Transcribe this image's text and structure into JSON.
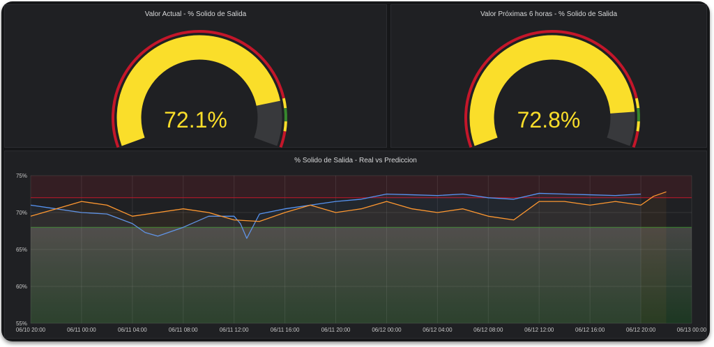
{
  "gauges": [
    {
      "title": "Valor Actual - % Solido de Salida",
      "value": 72.1,
      "display": "72.1%",
      "min": 55,
      "max": 75,
      "thresholds": [
        {
          "from": 55,
          "to": 72,
          "color": "#c4162a"
        },
        {
          "from": 72,
          "to": 72.6,
          "color": "#fade2a"
        },
        {
          "from": 72.6,
          "to": 73.4,
          "color": "#37872d"
        },
        {
          "from": 73.4,
          "to": 74,
          "color": "#fade2a"
        },
        {
          "from": 74,
          "to": 75,
          "color": "#c4162a"
        }
      ]
    },
    {
      "title": "Valor Próximas 6 horas - % Solido de Salida",
      "value": 72.8,
      "display": "72.8%",
      "min": 55,
      "max": 75,
      "thresholds": [
        {
          "from": 55,
          "to": 72,
          "color": "#c4162a"
        },
        {
          "from": 72,
          "to": 72.6,
          "color": "#fade2a"
        },
        {
          "from": 72.6,
          "to": 73.4,
          "color": "#37872d"
        },
        {
          "from": 73.4,
          "to": 74,
          "color": "#fade2a"
        },
        {
          "from": 74,
          "to": 75,
          "color": "#c4162a"
        }
      ]
    }
  ],
  "chart_data": {
    "type": "line",
    "title": "% Solido de Salida - Real vs Prediccion",
    "x_start": "06/10 20:00",
    "x_end": "06/13 00:00",
    "x_tick_labels": [
      "06/10 20:00",
      "06/11 00:00",
      "06/11 04:00",
      "06/11 08:00",
      "06/11 12:00",
      "06/11 16:00",
      "06/11 20:00",
      "06/12 00:00",
      "06/12 04:00",
      "06/12 08:00",
      "06/12 12:00",
      "06/12 16:00",
      "06/12 20:00",
      "06/13 00:00"
    ],
    "y_tick_labels": [
      "55%",
      "60%",
      "65%",
      "70%",
      "75%"
    ],
    "ylim": [
      55,
      75
    ],
    "upper_threshold": 72,
    "lower_threshold": 68,
    "grid": true,
    "series": [
      {
        "color": "#5794f2",
        "x": [
          "06/10 20:00",
          "06/10 22:00",
          "06/11 00:00",
          "06/11 02:00",
          "06/11 04:00",
          "06/11 05:00",
          "06/11 06:00",
          "06/11 08:00",
          "06/11 10:00",
          "06/11 12:00",
          "06/11 12:30",
          "06/11 13:00",
          "06/11 14:00",
          "06/11 16:00",
          "06/11 18:00",
          "06/11 20:00",
          "06/11 22:00",
          "06/12 00:00",
          "06/12 02:00",
          "06/12 04:00",
          "06/12 06:00",
          "06/12 08:00",
          "06/12 10:00",
          "06/12 12:00",
          "06/12 14:00",
          "06/12 16:00",
          "06/12 18:00",
          "06/12 20:00"
        ],
        "y": [
          71.0,
          70.5,
          70.0,
          69.8,
          68.5,
          67.3,
          66.8,
          68.0,
          69.5,
          69.5,
          68.5,
          66.5,
          69.8,
          70.5,
          71.0,
          71.5,
          71.8,
          72.5,
          72.4,
          72.3,
          72.5,
          72.0,
          71.8,
          72.6,
          72.5,
          72.4,
          72.3,
          72.5
        ]
      },
      {
        "color": "#ff9830",
        "x": [
          "06/10 20:00",
          "06/10 22:00",
          "06/11 00:00",
          "06/11 02:00",
          "06/11 04:00",
          "06/11 06:00",
          "06/11 08:00",
          "06/11 10:00",
          "06/11 12:00",
          "06/11 14:00",
          "06/11 16:00",
          "06/11 18:00",
          "06/11 20:00",
          "06/11 22:00",
          "06/12 00:00",
          "06/12 02:00",
          "06/12 04:00",
          "06/12 06:00",
          "06/12 08:00",
          "06/12 10:00",
          "06/12 12:00",
          "06/12 14:00",
          "06/12 16:00",
          "06/12 18:00",
          "06/12 20:00",
          "06/12 21:00",
          "06/12 22:00"
        ],
        "y": [
          69.5,
          70.5,
          71.5,
          71.0,
          69.5,
          70.0,
          70.5,
          70.0,
          69.0,
          68.8,
          70.0,
          71.0,
          70.0,
          70.5,
          71.5,
          70.5,
          70.0,
          70.5,
          69.5,
          69.0,
          71.5,
          71.5,
          71.0,
          71.5,
          71.0,
          72.2,
          72.8
        ]
      }
    ]
  }
}
